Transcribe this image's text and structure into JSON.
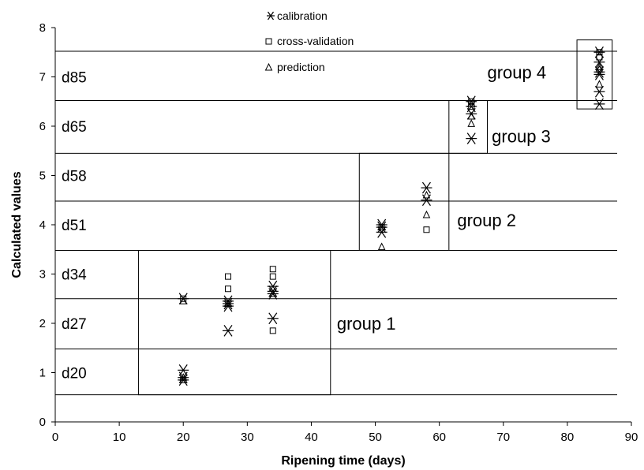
{
  "chart_data": {
    "type": "scatter",
    "title": "",
    "xlabel": "Ripening time (days)",
    "ylabel": "Calculated values",
    "xlim": [
      0,
      90
    ],
    "ylim": [
      0,
      8
    ],
    "xticks": [
      0,
      10,
      20,
      30,
      40,
      50,
      60,
      70,
      80,
      90
    ],
    "yticks": [
      0,
      1,
      2,
      3,
      4,
      5,
      6,
      7,
      8
    ],
    "grid": false,
    "legend": "top-center",
    "series": [
      {
        "name": "calibration",
        "marker": "asterisk",
        "points": [
          [
            20,
            0.85
          ],
          [
            20,
            0.9
          ],
          [
            20,
            1.05
          ],
          [
            20,
            2.5
          ],
          [
            27,
            1.85
          ],
          [
            27,
            2.35
          ],
          [
            27,
            2.4
          ],
          [
            27,
            2.45
          ],
          [
            34,
            2.1
          ],
          [
            34,
            2.6
          ],
          [
            34,
            2.65
          ],
          [
            34,
            2.75
          ],
          [
            51,
            3.85
          ],
          [
            51,
            3.95
          ],
          [
            51,
            4.0
          ],
          [
            58,
            4.5
          ],
          [
            58,
            4.75
          ],
          [
            65,
            5.75
          ],
          [
            65,
            6.25
          ],
          [
            65,
            6.4
          ],
          [
            65,
            6.5
          ],
          [
            85,
            6.45
          ],
          [
            85,
            6.7
          ],
          [
            85,
            7.05
          ],
          [
            85,
            7.1
          ],
          [
            85,
            7.3
          ],
          [
            85,
            7.5
          ]
        ]
      },
      {
        "name": "cross-validation",
        "marker": "square",
        "points": [
          [
            20,
            0.85
          ],
          [
            20,
            2.5
          ],
          [
            27,
            2.7
          ],
          [
            27,
            2.95
          ],
          [
            34,
            1.85
          ],
          [
            34,
            2.95
          ],
          [
            34,
            3.1
          ],
          [
            51,
            3.95
          ],
          [
            58,
            3.9
          ],
          [
            65,
            6.4
          ],
          [
            65,
            6.5
          ],
          [
            85,
            7.4
          ],
          [
            85,
            7.5
          ]
        ]
      },
      {
        "name": "prediction",
        "marker": "triangle",
        "points": [
          [
            20,
            0.9
          ],
          [
            20,
            2.45
          ],
          [
            27,
            2.4
          ],
          [
            34,
            2.6
          ],
          [
            51,
            3.55
          ],
          [
            58,
            4.2
          ],
          [
            58,
            4.6
          ],
          [
            65,
            6.05
          ],
          [
            65,
            6.2
          ],
          [
            85,
            6.85
          ],
          [
            85,
            7.15
          ],
          [
            85,
            7.2
          ]
        ]
      }
    ],
    "hlines": [
      0.55,
      1.48,
      2.5,
      3.48,
      4.48,
      5.45,
      6.52,
      7.52
    ],
    "band_labels": [
      {
        "label": "d20",
        "y": 1.0
      },
      {
        "label": "d27",
        "y": 2.0
      },
      {
        "label": "d34",
        "y": 3.0
      },
      {
        "label": "d51",
        "y": 4.0
      },
      {
        "label": "d58",
        "y": 5.0
      },
      {
        "label": "d65",
        "y": 6.0
      },
      {
        "label": "d85",
        "y": 7.0
      }
    ],
    "groups": [
      {
        "label": "group 1",
        "x": [
          13,
          43
        ],
        "y": [
          0.55,
          3.48
        ],
        "label_x": 44,
        "label_y": 2.0
      },
      {
        "label": "group 2",
        "x": [
          47.5,
          61.5
        ],
        "y": [
          3.48,
          5.45
        ],
        "label_x": 62.8,
        "label_y": 4.1
      },
      {
        "label": "group 3",
        "x": [
          61.5,
          67.5
        ],
        "y": [
          5.45,
          6.52
        ],
        "label_x": 68.2,
        "label_y": 5.8
      },
      {
        "label": "group 4",
        "x": [
          81.5,
          87
        ],
        "y": [
          6.35,
          7.75
        ],
        "label_x": 67.5,
        "label_y": 7.1
      }
    ]
  }
}
